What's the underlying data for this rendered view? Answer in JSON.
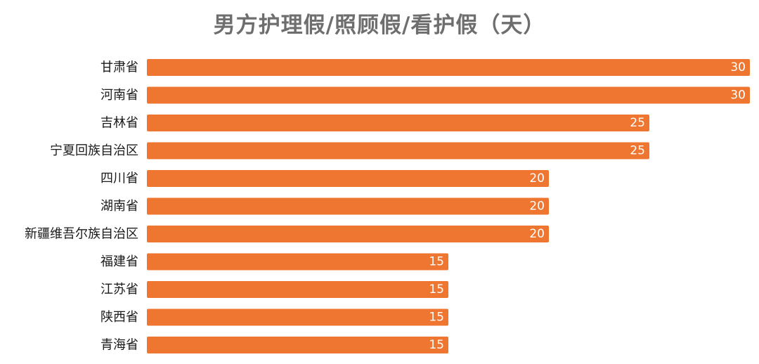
{
  "chart_data": {
    "type": "bar",
    "orientation": "horizontal",
    "title": "男方护理假/照顾假/看护假（天）",
    "categories": [
      "甘肃省",
      "河南省",
      "吉林省",
      "宁夏回族自治区",
      "四川省",
      "湖南省",
      "新疆维吾尔族自治区",
      "福建省",
      "江苏省",
      "陕西省",
      "青海省"
    ],
    "values": [
      30,
      30,
      25,
      25,
      20,
      20,
      20,
      15,
      15,
      15,
      15
    ],
    "xlim": [
      0,
      30
    ],
    "bar_color": "#ee7631",
    "value_label_color": "#ffffff",
    "grid": false,
    "legend": "none"
  }
}
